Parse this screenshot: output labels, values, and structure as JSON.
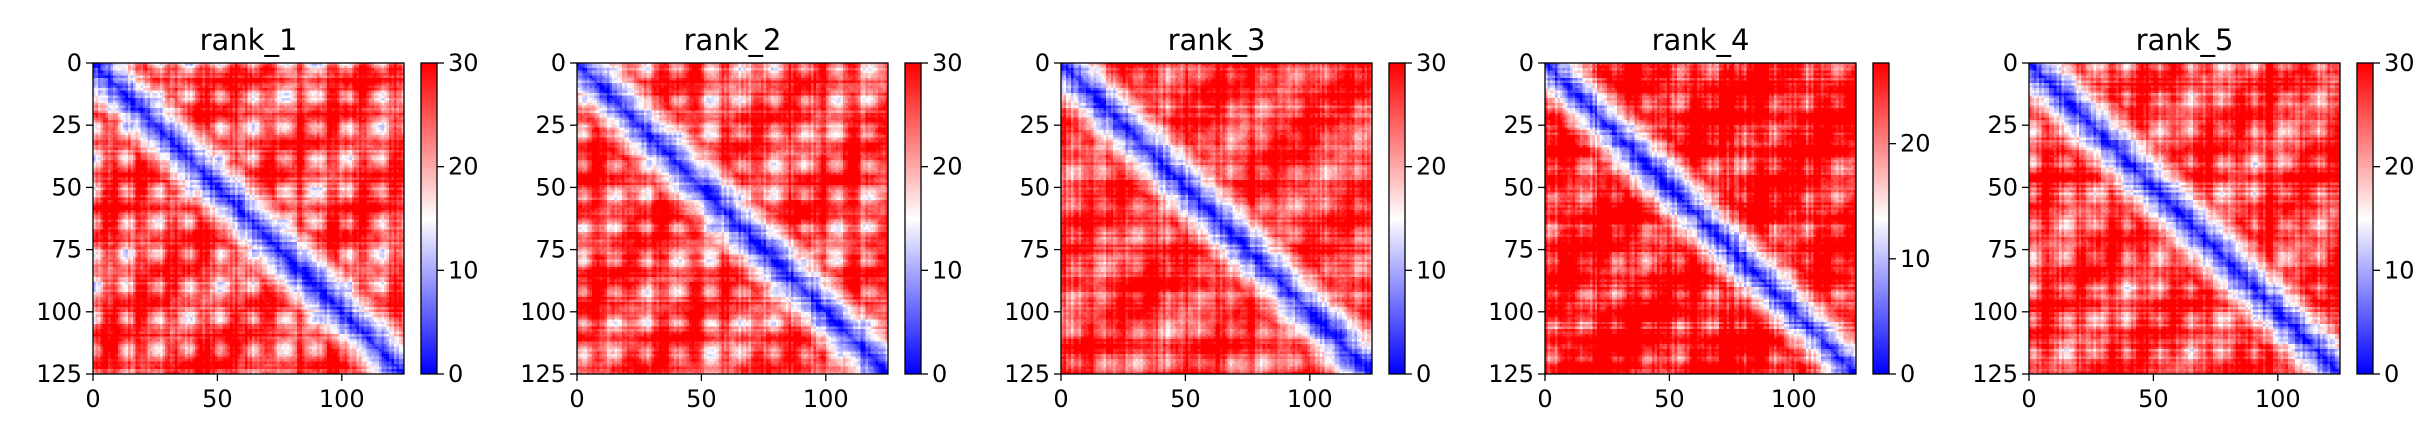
{
  "chart_data": [
    {
      "type": "heatmap",
      "title": "rank_1",
      "xlabel": "",
      "ylabel": "",
      "x_ticks": [
        0,
        50,
        100
      ],
      "y_ticks": [
        0,
        25,
        50,
        75,
        100,
        125
      ],
      "xlim": [
        0,
        125
      ],
      "ylim": [
        125,
        0
      ],
      "n": 125,
      "colorbar": {
        "ticks": [
          0,
          10,
          20,
          30
        ],
        "range": [
          0,
          30
        ]
      },
      "colormap": {
        "low": "#0000ff",
        "mid": "#ffffff",
        "high": "#ff0000"
      },
      "pattern": {
        "period": 25.5,
        "shift": 0.0,
        "diag_width": 3.2,
        "blob_strength": 1.0
      }
    },
    {
      "type": "heatmap",
      "title": "rank_2",
      "xlabel": "",
      "ylabel": "",
      "x_ticks": [
        0,
        50,
        100
      ],
      "y_ticks": [
        0,
        25,
        50,
        75,
        100,
        125
      ],
      "xlim": [
        0,
        125
      ],
      "ylim": [
        125,
        0
      ],
      "n": 125,
      "colorbar": {
        "ticks": [
          0,
          10,
          20,
          30
        ],
        "range": [
          0,
          30
        ]
      },
      "colormap": {
        "low": "#0000ff",
        "mid": "#ffffff",
        "high": "#ff0000"
      },
      "pattern": {
        "period": 25.5,
        "shift": 2.0,
        "diag_width": 3.4,
        "blob_strength": 0.9
      }
    },
    {
      "type": "heatmap",
      "title": "rank_3",
      "xlabel": "",
      "ylabel": "",
      "x_ticks": [
        0,
        50,
        100
      ],
      "y_ticks": [
        0,
        25,
        50,
        75,
        100,
        125
      ],
      "xlim": [
        0,
        125
      ],
      "ylim": [
        125,
        0
      ],
      "n": 125,
      "colorbar": {
        "ticks": [
          0,
          10,
          20,
          30
        ],
        "range": [
          0,
          30
        ]
      },
      "colormap": {
        "low": "#0000ff",
        "mid": "#ffffff",
        "high": "#ff0000"
      },
      "pattern": {
        "period": 25.5,
        "shift": 5.0,
        "diag_width": 3.0,
        "blob_strength": 0.55
      }
    },
    {
      "type": "heatmap",
      "title": "rank_4",
      "xlabel": "",
      "ylabel": "",
      "x_ticks": [
        0,
        50,
        100
      ],
      "y_ticks": [
        0,
        25,
        50,
        75,
        100,
        125
      ],
      "xlim": [
        0,
        125
      ],
      "ylim": [
        125,
        0
      ],
      "n": 125,
      "colorbar": {
        "ticks": [
          0,
          10,
          20
        ],
        "range": [
          0,
          27
        ]
      },
      "colormap": {
        "low": "#0000ff",
        "mid": "#ffffff",
        "high": "#ff0000"
      },
      "pattern": {
        "period": 25.5,
        "shift": 3.0,
        "diag_width": 3.0,
        "blob_strength": 0.6
      }
    },
    {
      "type": "heatmap",
      "title": "rank_5",
      "xlabel": "",
      "ylabel": "",
      "x_ticks": [
        0,
        50,
        100
      ],
      "y_ticks": [
        0,
        25,
        50,
        75,
        100,
        125
      ],
      "xlim": [
        0,
        125
      ],
      "ylim": [
        125,
        0
      ],
      "n": 125,
      "colorbar": {
        "ticks": [
          0,
          10,
          20,
          30
        ],
        "range": [
          0,
          30
        ]
      },
      "colormap": {
        "low": "#0000ff",
        "mid": "#ffffff",
        "high": "#ff0000"
      },
      "pattern": {
        "period": 25.5,
        "shift": 1.0,
        "diag_width": 3.3,
        "blob_strength": 0.75
      }
    }
  ]
}
